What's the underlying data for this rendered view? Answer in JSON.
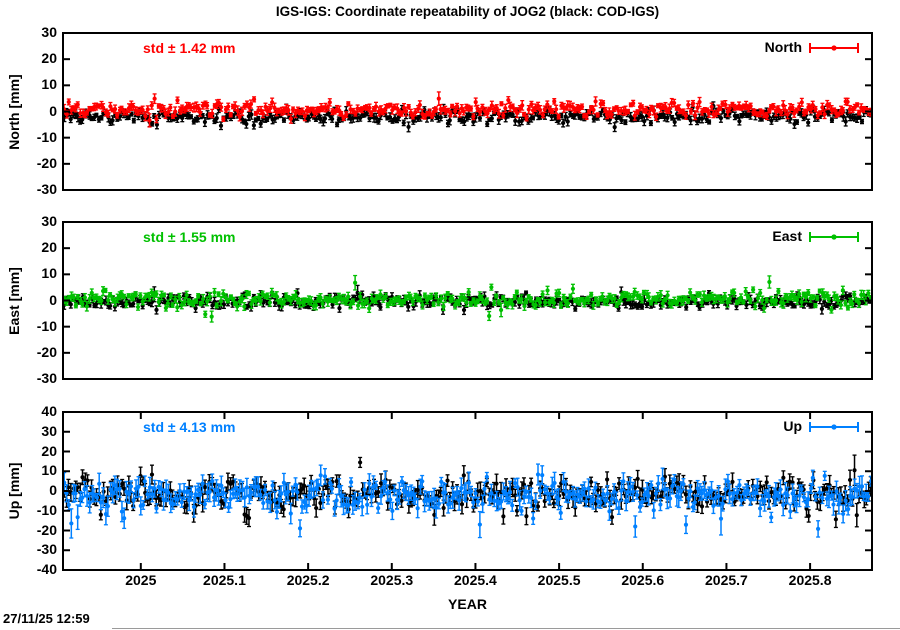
{
  "page": {
    "title": "IGS-IGS: Coordinate repeatability of JOG2 (black: COD-IGS)",
    "timestamp": "27/11/25 12:59"
  },
  "chart_data": {
    "type": "scatter",
    "title": "IGS-IGS: Coordinate repeatability of JOG2 (black: COD-IGS)",
    "xlabel": "YEAR",
    "y_unit": "mm",
    "grid": false,
    "legend_position": "top-right-inside",
    "x_range": [
      2024.907,
      2025.874
    ],
    "x_tick_values": [
      2025,
      2025.1,
      2025.2,
      2025.3,
      2025.4,
      2025.5,
      2025.6,
      2025.7,
      2025.8
    ],
    "x_tick_labels": [
      "2025",
      "2025.1",
      "2025.2",
      "2025.3",
      "2025.4",
      "2025.5",
      "2025.6",
      "2025.7",
      "2025.8"
    ],
    "points_per_series": 350,
    "marker": "filled-circle-with-vertical-errorbar",
    "panels": [
      {
        "id": "north",
        "ylabel": "North [mm]",
        "ylim": [
          -30,
          30
        ],
        "y_tick_values": [
          30,
          20,
          10,
          0,
          -10,
          -20,
          -30
        ],
        "y_tick_labels": [
          "30",
          "20",
          "10",
          "0",
          "-10",
          "-20",
          "-30"
        ],
        "std_label": "std ± 1.42 mm",
        "std_mm": 1.42,
        "legend_label": "North",
        "accent_color": "#ff0000",
        "series": [
          {
            "name": "COD-IGS",
            "color": "#000000",
            "center_mm": -1.9,
            "scatter_std_mm": 1.25,
            "errorbar_mm": [
              0.7,
              1.8
            ],
            "outlier_prob": 0.012,
            "outlier_up_fraction": 0.3,
            "outlier_mag_std": [
              2.0,
              3.5
            ]
          },
          {
            "name": "IGS-IGS",
            "color": "#ff0000",
            "center_mm": 0.7,
            "scatter_std_mm": 1.42,
            "errorbar_mm": [
              0.7,
              1.8
            ],
            "outlier_prob": 0.008,
            "outlier_up_fraction": 0.5,
            "outlier_mag_std": [
              1.8,
              3.0
            ]
          }
        ]
      },
      {
        "id": "east",
        "ylabel": "East [mm]",
        "ylim": [
          -30,
          30
        ],
        "y_tick_values": [
          30,
          20,
          10,
          0,
          -10,
          -20,
          -30
        ],
        "y_tick_labels": [
          "30",
          "20",
          "10",
          "0",
          "-10",
          "-20",
          "-30"
        ],
        "std_label": "std ± 1.55 mm",
        "std_mm": 1.55,
        "legend_label": "East",
        "accent_color": "#00c000",
        "series": [
          {
            "name": "COD-IGS",
            "color": "#000000",
            "center_mm": -0.4,
            "scatter_std_mm": 1.2,
            "errorbar_mm": [
              0.7,
              1.8
            ],
            "outlier_prob": 0.01,
            "outlier_up_fraction": 0.4,
            "outlier_mag_std": [
              2.0,
              3.0
            ]
          },
          {
            "name": "IGS-IGS",
            "color": "#00c000",
            "center_mm": 0.5,
            "scatter_std_mm": 1.55,
            "errorbar_mm": [
              0.7,
              1.8
            ],
            "outlier_prob": 0.015,
            "outlier_up_fraction": 0.8,
            "outlier_mag_std": [
              2.5,
              4.5
            ]
          }
        ]
      },
      {
        "id": "up",
        "ylabel": "Up [mm]",
        "ylim": [
          -40,
          40
        ],
        "y_tick_values": [
          40,
          30,
          20,
          10,
          0,
          -10,
          -20,
          -30,
          -40
        ],
        "y_tick_labels": [
          "40",
          "30",
          "20",
          "10",
          "0",
          "-10",
          "-20",
          "-30",
          "-40"
        ],
        "std_label": "std ± 4.13 mm",
        "std_mm": 4.13,
        "legend_label": "Up",
        "accent_color": "#0080ff",
        "series": [
          {
            "name": "COD-IGS",
            "color": "#000000",
            "center_mm": -1.5,
            "scatter_std_mm": 3.8,
            "errorbar_mm": [
              2.0,
              5.0
            ],
            "outlier_prob": 0.02,
            "outlier_up_fraction": 0.4,
            "outlier_mag_std": [
              2.0,
              3.5
            ]
          },
          {
            "name": "IGS-IGS",
            "color": "#0080ff",
            "center_mm": -2.0,
            "scatter_std_mm": 4.0,
            "errorbar_mm": [
              2.0,
              5.5
            ],
            "outlier_prob": 0.025,
            "outlier_up_fraction": 0.25,
            "outlier_mag_std": [
              2.0,
              4.5
            ]
          }
        ]
      }
    ]
  }
}
